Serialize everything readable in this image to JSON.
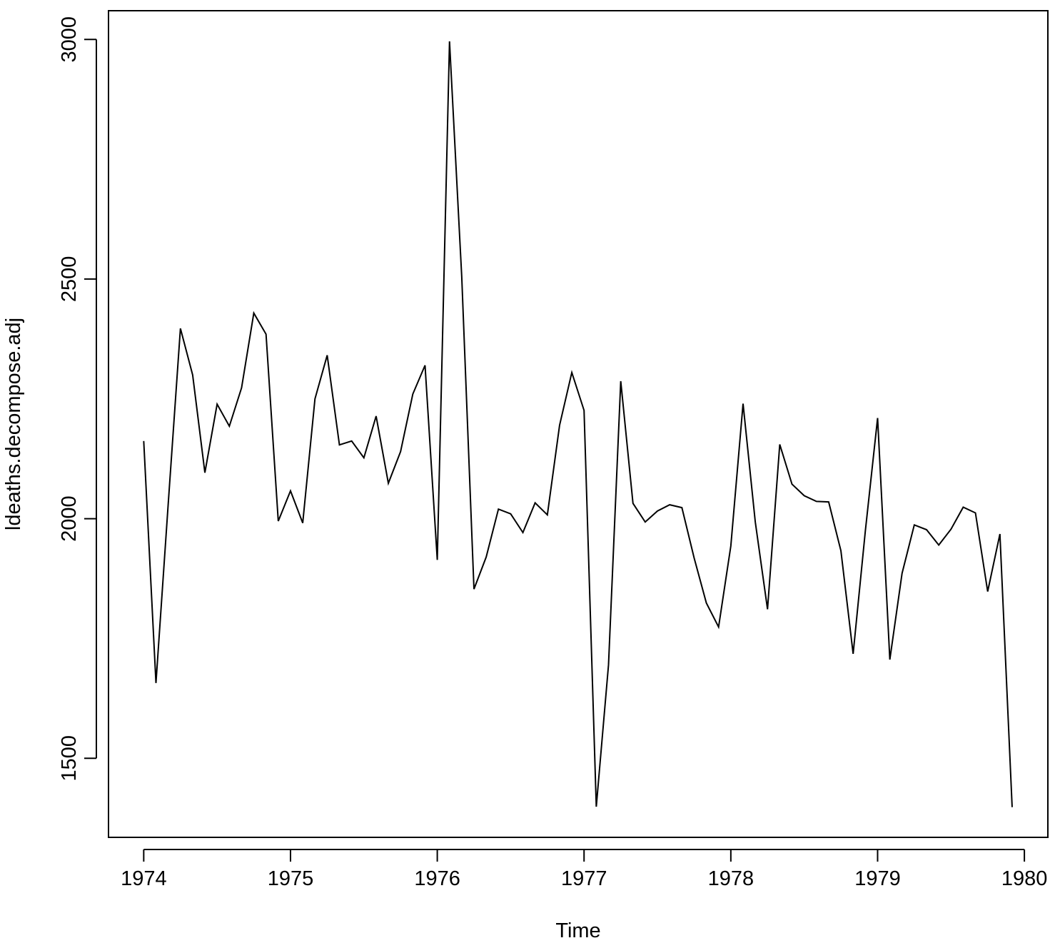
{
  "chart_data": {
    "type": "line",
    "title": "",
    "xlabel": "Time",
    "ylabel": "ldeaths.decompose.adj",
    "xlim": [
      1973.76,
      1980.16
    ],
    "ylim": [
      1335,
      3060
    ],
    "x_start": 1974,
    "frequency": 12,
    "x_ticks": [
      "1974",
      "1975",
      "1976",
      "1977",
      "1978",
      "1979",
      "1980"
    ],
    "y_ticks": [
      "1500",
      "2000",
      "2500",
      "3000"
    ],
    "grid": false,
    "legend": "none",
    "line_color": "#000000",
    "series": [
      {
        "values": [
          2162,
          1657,
          2030,
          2397,
          2300,
          2096,
          2239,
          2193,
          2273,
          2429,
          2385,
          1995,
          2058,
          1991,
          2250,
          2341,
          2154,
          2162,
          2127,
          2214,
          2074,
          2140,
          2260,
          2320,
          1914,
          2996,
          2505,
          1853,
          1920,
          2020,
          2010,
          1971,
          2033,
          2008,
          2195,
          2305,
          2226,
          1399,
          1695,
          2287,
          2032,
          1993,
          2016,
          2029,
          2023,
          1918,
          1824,
          1774,
          1943,
          2240,
          1993,
          1811,
          2155,
          2072,
          2048,
          2036,
          2035,
          1933,
          1718,
          1975,
          2210,
          1706,
          1886,
          1987,
          1977,
          1945,
          1978,
          2024,
          2012,
          1848,
          1968,
          1398
        ]
      }
    ]
  }
}
